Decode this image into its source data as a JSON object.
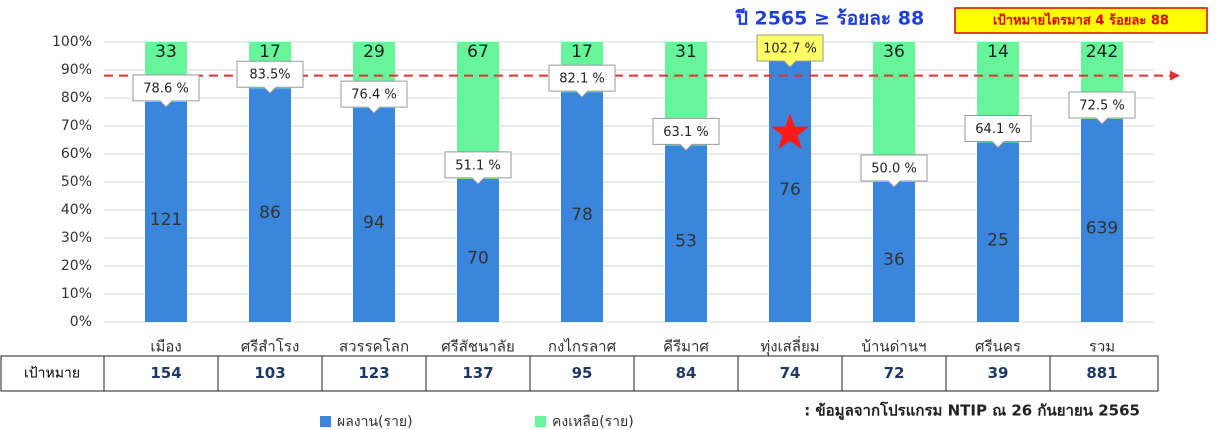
{
  "chart_data": {
    "type": "stacked100",
    "title": "ปี 2565 ≥ ร้อยละ 88",
    "target_note": "เป้าหมายไตรมาส 4 ร้อยละ 88",
    "categories": [
      "เมือง",
      "ศรีสำโรง",
      "สวรรคโลก",
      "ศรีสัชนาลัย",
      "กงไกรลาศ",
      "คีรีมาศ",
      "ทุ่งเสลี่ยม",
      "บ้านด่านฯ",
      "ศรีนคร",
      "รวม"
    ],
    "series": [
      {
        "name": "ผลงาน(ราย)",
        "color": "#3a86dc",
        "values": [
          121,
          86,
          94,
          70,
          78,
          53,
          76,
          36,
          25,
          639
        ]
      },
      {
        "name": "คงเหลือ(ราย)",
        "color": "#66f59a",
        "values": [
          33,
          17,
          29,
          67,
          17,
          31,
          null,
          36,
          14,
          242
        ]
      }
    ],
    "rates": [
      78.6,
      83.5,
      76.4,
      51.1,
      82.1,
      63.1,
      102.7,
      50.0,
      64.1,
      72.5
    ],
    "rate_labels": [
      "78.6 %",
      "83.5%",
      "76.4 %",
      "51.1 %",
      "82.1 %",
      "63.1 %",
      "102.7 %",
      "50.0 %",
      "64.1 %",
      "72.5 %"
    ],
    "reference_line": 88,
    "ylim": [
      0,
      100
    ],
    "yticks": [
      {
        "value": 0,
        "label": "0%"
      },
      {
        "value": 10,
        "label": "10%"
      },
      {
        "value": 20,
        "label": "20%"
      },
      {
        "value": 30,
        "label": "30%"
      },
      {
        "value": 40,
        "label": "40%"
      },
      {
        "value": 50,
        "label": "50%"
      },
      {
        "value": 60,
        "label": "60%"
      },
      {
        "value": 70,
        "label": "70%"
      },
      {
        "value": 80,
        "label": "80%"
      },
      {
        "value": 90,
        "label": "90%"
      },
      {
        "value": 100,
        "label": "100%"
      }
    ],
    "grid": true,
    "table": {
      "header": "เป้าหมาย",
      "values": [
        154,
        103,
        123,
        137,
        95,
        84,
        74,
        72,
        39,
        881
      ]
    },
    "source": ": ข้อมูลจากโปรแกรม NTIP ณ 26 กันยายน 2565"
  }
}
